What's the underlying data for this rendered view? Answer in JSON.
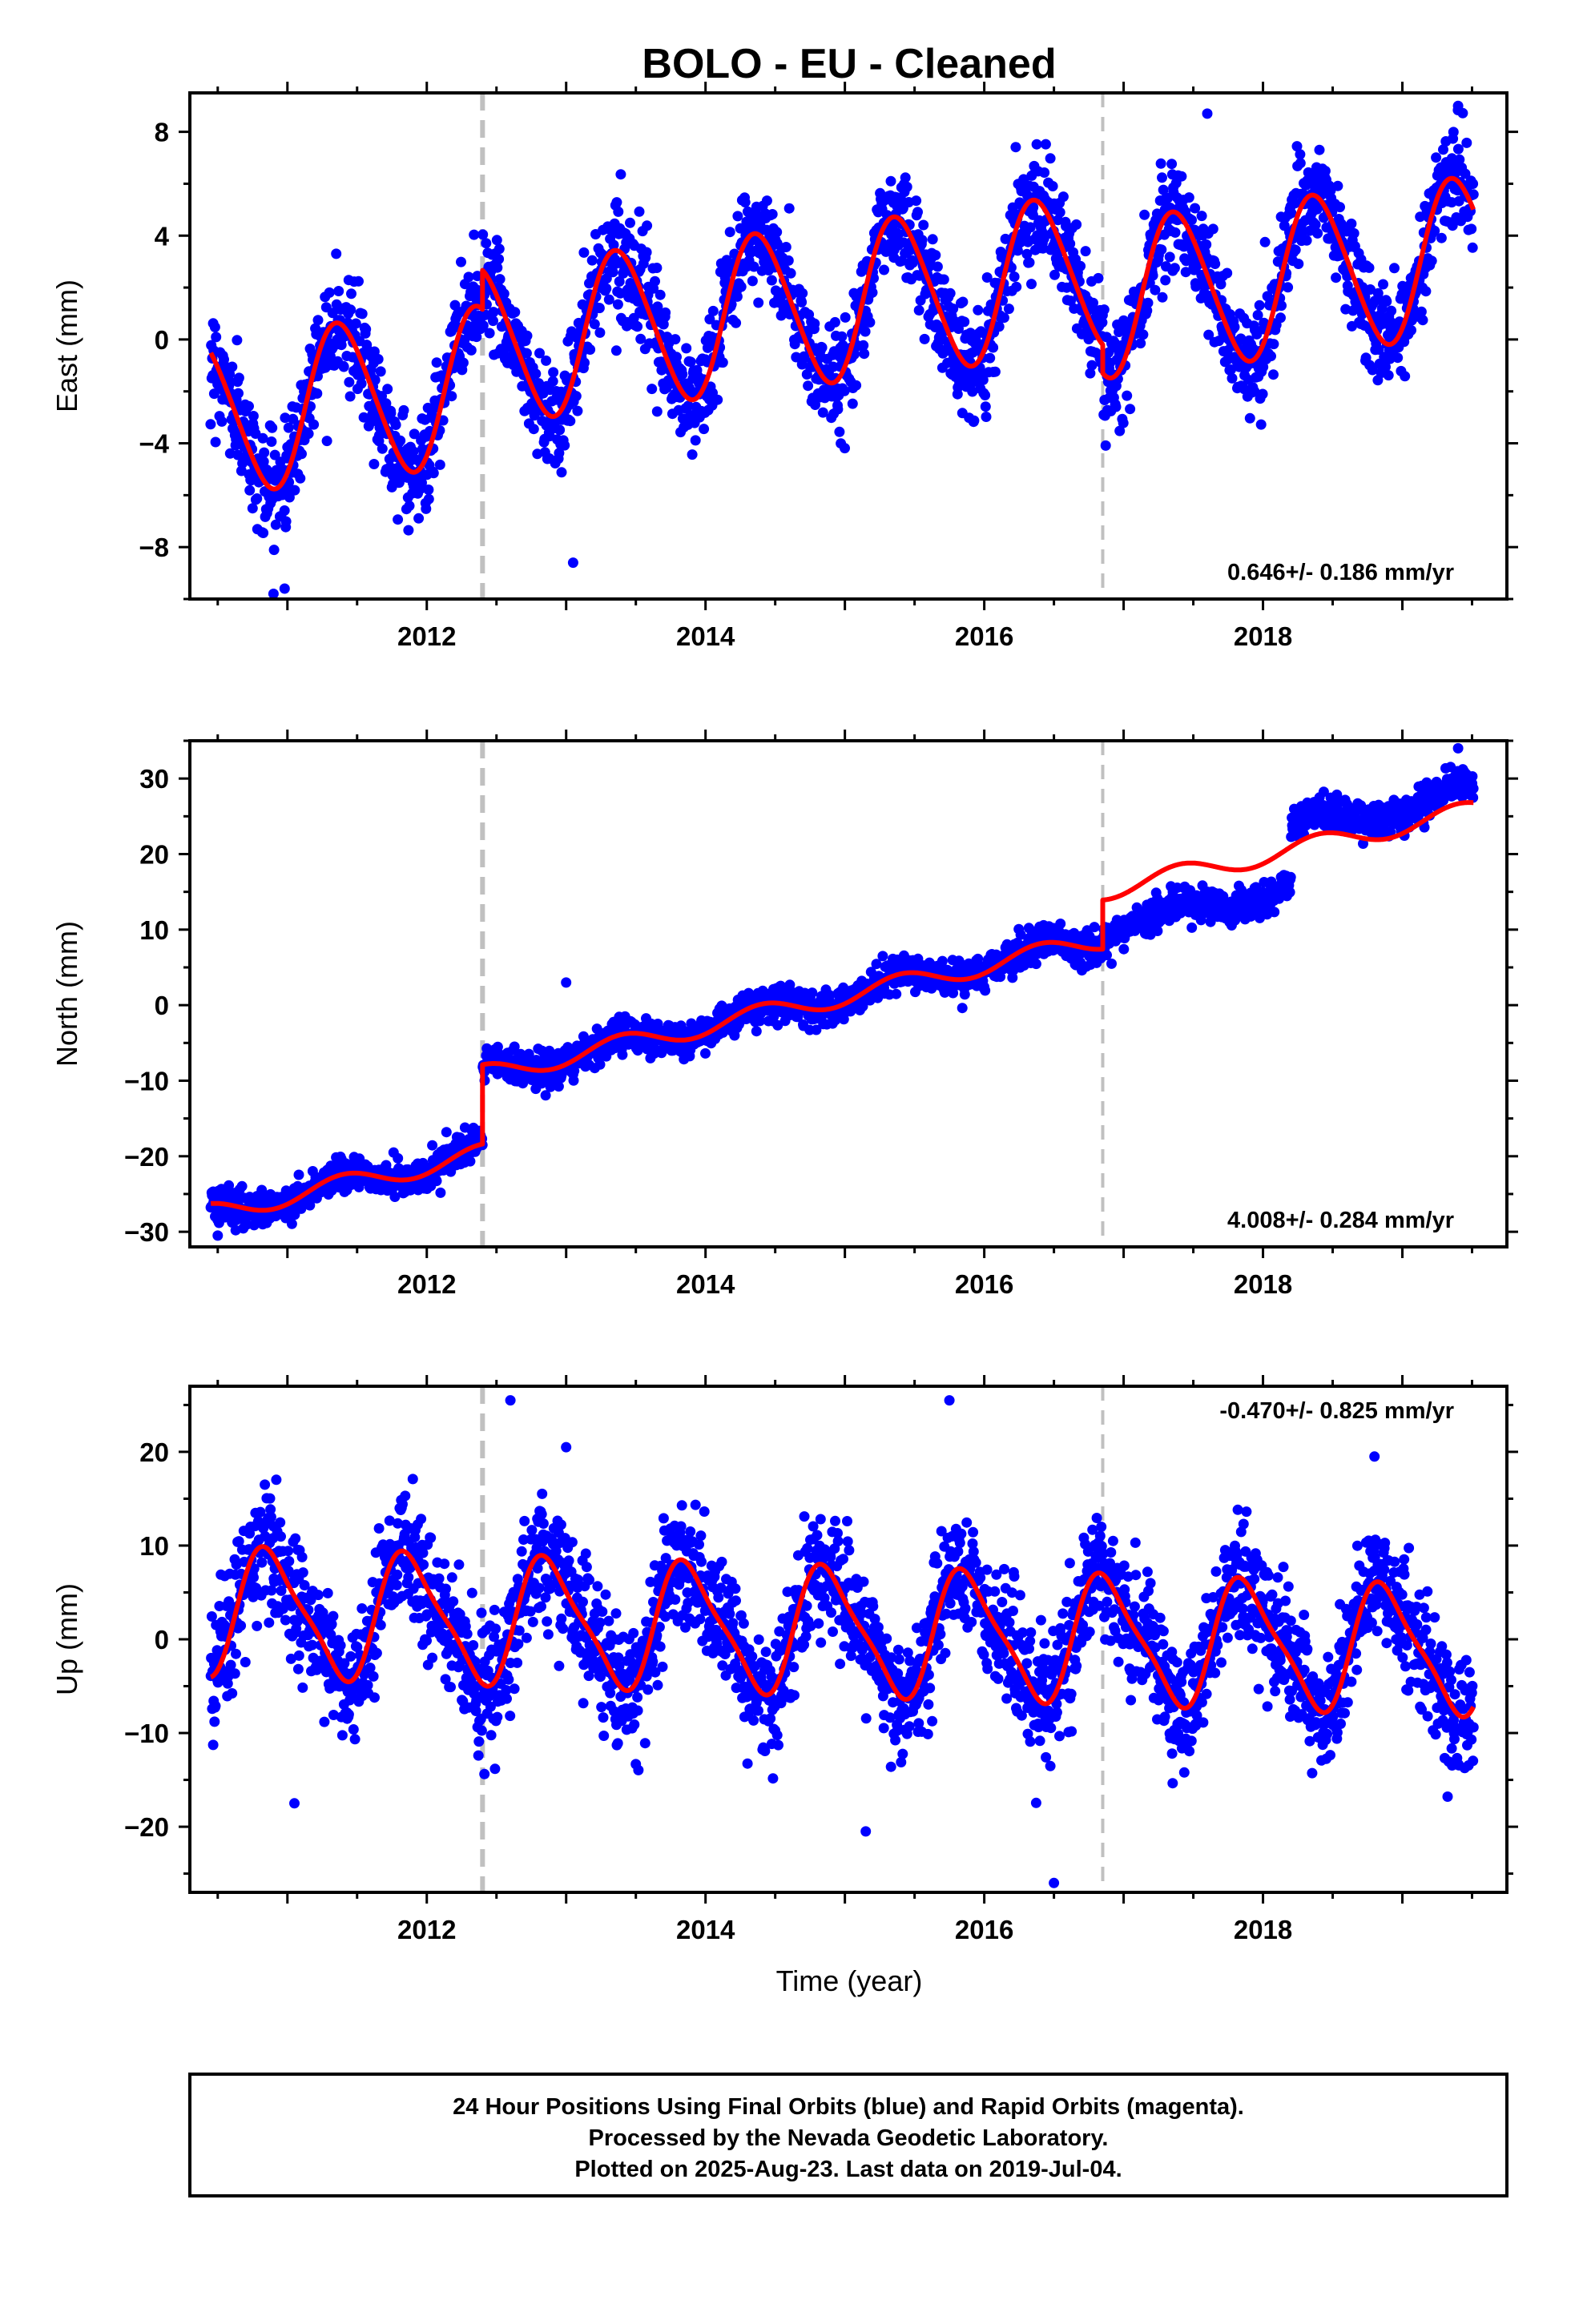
{
  "title": "BOLO  - EU - Cleaned",
  "xlabel": "Time (year)",
  "footer": {
    "lines": [
      "24 Hour Positions Using Final Orbits (blue) and Rapid Orbits (magenta).",
      "Processed by the Nevada Geodetic Laboratory.",
      "Plotted on 2025-Aug-23. Last data on 2019-Jul-04."
    ]
  },
  "colors": {
    "points": "#0000ff",
    "model": "#ff0000",
    "event_lines": "#c0c0c0"
  },
  "chart_data": [
    {
      "type": "scatter",
      "component": "east",
      "ylabel": "East (mm)",
      "xlim": [
        2010.3,
        2019.75
      ],
      "ylim": [
        -10,
        9.5
      ],
      "yticks": [
        -8,
        -4,
        0,
        4,
        8
      ],
      "ytick_labels": [
        "−8",
        "−4",
        "0",
        "4",
        "8"
      ],
      "xticks": [
        2012,
        2014,
        2016,
        2018
      ],
      "xtick_labels": [
        "2012",
        "2014",
        "2016",
        "2018"
      ],
      "rate_label": "0.646+/- 0.186 mm/yr",
      "rate_position": "bottom-right",
      "event_lines": [
        2012.4,
        2016.85
      ],
      "data_range": [
        2010.45,
        2019.51
      ],
      "model": {
        "trend": 0.646,
        "offset": -3.0,
        "jumps": [
          [
            2012.4,
            1.5
          ],
          [
            2016.85,
            -1.1
          ]
        ],
        "season_amp": 3.0,
        "season_phase": 0.13,
        "semiannual_amp": 0.3
      },
      "noise_sd": 1.0,
      "outliers": [
        [
          2010.98,
          -9.6
        ],
        [
          2013.05,
          -8.6
        ],
        [
          2011.35,
          3.3
        ],
        [
          2019.4,
          9.0
        ],
        [
          2017.6,
          8.7
        ]
      ]
    },
    {
      "type": "scatter",
      "component": "north",
      "ylabel": "North (mm)",
      "xlim": [
        2010.3,
        2019.75
      ],
      "ylim": [
        -32,
        35
      ],
      "yticks": [
        -30,
        -20,
        -10,
        0,
        10,
        20,
        30
      ],
      "ytick_labels": [
        "−30",
        "−20",
        "−10",
        "0",
        "10",
        "20",
        "30"
      ],
      "xticks": [
        2012,
        2014,
        2016,
        2018
      ],
      "xtick_labels": [
        "2012",
        "2014",
        "2016",
        "2018"
      ],
      "rate_label": "4.008+/- 0.284 mm/yr",
      "rate_position": "bottom-right",
      "event_lines": [
        2012.4,
        2016.85
      ],
      "data_range": [
        2010.45,
        2019.51
      ],
      "model": {
        "trend": 4.008,
        "offset": -27.5,
        "jumps": [
          [
            2012.4,
            10.5
          ],
          [
            2016.85,
            6.5
          ]
        ],
        "season_amp": 1.3,
        "season_phase": 0.15,
        "semiannual_amp": 0.0
      },
      "noise_sd": 1.1,
      "data_extra_steps": [
        [
          2016.85,
          -5.0
        ],
        [
          2018.2,
          7.5
        ]
      ],
      "outliers": [
        [
          2010.5,
          -30.5
        ],
        [
          2013.0,
          3.0
        ],
        [
          2019.4,
          34.0
        ]
      ]
    },
    {
      "type": "scatter",
      "component": "up",
      "ylabel": "Up (mm)",
      "xlim": [
        2010.3,
        2019.75
      ],
      "ylim": [
        -27,
        27
      ],
      "yticks": [
        -20,
        -10,
        0,
        10,
        20
      ],
      "ytick_labels": [
        "−20",
        "−10",
        "0",
        "10",
        "20"
      ],
      "xticks": [
        2012,
        2014,
        2016,
        2018
      ],
      "xtick_labels": [
        "2012",
        "2014",
        "2016",
        "2018"
      ],
      "rate_label": "-0.470+/- 0.825 mm/yr",
      "rate_position": "top-right",
      "event_lines": [
        2012.4,
        2016.85
      ],
      "data_range": [
        2010.45,
        2019.51
      ],
      "model": {
        "trend": -0.47,
        "offset": 3.0,
        "jumps": [],
        "season_amp": 6.5,
        "season_phase": 0.63,
        "semiannual_amp": 1.5
      },
      "noise_sd": 3.2,
      "outliers": [
        [
          2012.6,
          25.5
        ],
        [
          2015.75,
          25.5
        ],
        [
          2016.5,
          -26.0
        ],
        [
          2013.0,
          20.5
        ],
        [
          2018.8,
          19.5
        ],
        [
          2015.15,
          -20.5
        ],
        [
          2011.05,
          -17.5
        ]
      ]
    }
  ]
}
